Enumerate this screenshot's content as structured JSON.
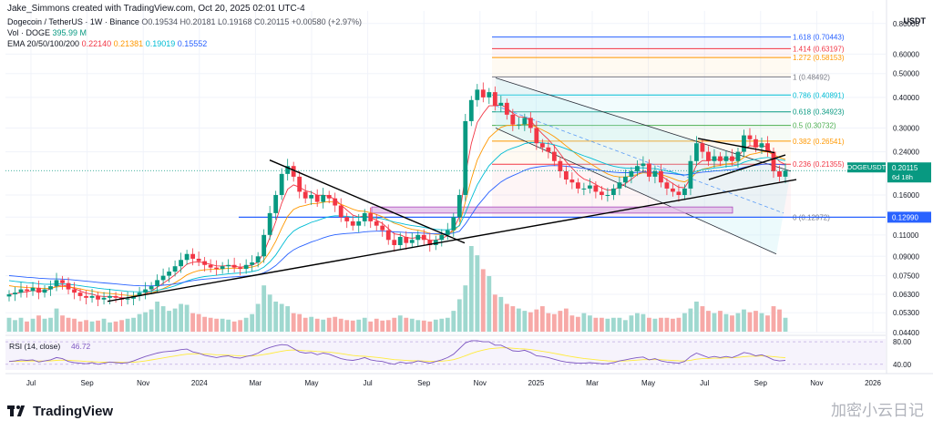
{
  "header": {
    "author_line": "Jake_Simmons created with TradingView.com, Oct 20, 2025 02:01 UTC-4"
  },
  "legend": {
    "symbol": "Dogecoin / TetherUS · 1W · Binance",
    "ohlc": "O0.19534 H0.20181 L0.19168 C0.20115 +0.00580 (+2.97%)",
    "vol_label": "Vol · DOGE",
    "vol_value": "395.99 M",
    "ema_label": "EMA 20/50/100/200",
    "ema_values": [
      "0.22140",
      "0.21381",
      "0.19019",
      "0.15552"
    ]
  },
  "axis": {
    "currency": "USDT"
  },
  "footer": {
    "brand": "TradingView",
    "watermark": "加密小云日记"
  },
  "chart_data": {
    "type": "candlestick",
    "symbol": "DOGEUSDT",
    "scale": "log",
    "ylim": [
      0.044,
      0.9
    ],
    "price_ticks": [
      0.8,
      0.6,
      0.5,
      0.4,
      0.3,
      0.24,
      0.16,
      0.13,
      0.11,
      0.09,
      0.075,
      0.063,
      0.053,
      0.044
    ],
    "price_tick_labels": [
      "0.80000",
      "0.60000",
      "0.50000",
      "0.40000",
      "0.30000",
      "0.24000",
      "0.16000",
      "0.13000",
      "0.11000",
      "0.09000",
      "0.07500",
      "0.06300",
      "0.05300",
      "0.04400"
    ],
    "time_labels": [
      "Jul",
      "Sep",
      "Nov",
      "2024",
      "Mar",
      "May",
      "Jul",
      "Sep",
      "Nov",
      "2025",
      "Mar",
      "May",
      "Jul",
      "Sep",
      "Nov",
      "2026"
    ],
    "time_ticks_month_index": [
      0,
      2,
      4,
      6,
      8,
      10,
      12,
      14,
      16,
      18,
      20,
      22,
      24,
      26,
      28,
      30
    ],
    "current_price": {
      "value": 0.20115,
      "label": "DOGEUSDT",
      "price_label": "0.20115",
      "countdown": "6d 18h",
      "color": "#089981"
    },
    "horizontal_level": {
      "value": 0.1299,
      "label": "0.12990",
      "color": "#2962ff"
    },
    "fib_levels": [
      {
        "ratio": "1.618",
        "value": 0.70443,
        "color": "#2962ff"
      },
      {
        "ratio": "1.414",
        "value": 0.63197,
        "color": "#f23645"
      },
      {
        "ratio": "1.272",
        "value": 0.58153,
        "color": "#ff9800"
      },
      {
        "ratio": "1",
        "value": 0.48492,
        "color": "#787b86"
      },
      {
        "ratio": "0.786",
        "value": 0.40891,
        "color": "#00bcd4"
      },
      {
        "ratio": "0.618",
        "value": 0.34923,
        "color": "#089981"
      },
      {
        "ratio": "0.5",
        "value": 0.30732,
        "color": "#4caf50"
      },
      {
        "ratio": "0.382",
        "value": 0.26541,
        "color": "#ff9800"
      },
      {
        "ratio": "0.236",
        "value": 0.21355,
        "color": "#f23645"
      },
      {
        "ratio": "0",
        "value": 0.12972,
        "color": "#787b86"
      }
    ],
    "price_path_weekly": [
      0.063,
      0.064,
      0.066,
      0.065,
      0.067,
      0.064,
      0.066,
      0.068,
      0.072,
      0.07,
      0.066,
      0.064,
      0.062,
      0.061,
      0.062,
      0.06,
      0.061,
      0.062,
      0.061,
      0.06,
      0.0605,
      0.062,
      0.064,
      0.066,
      0.068,
      0.072,
      0.075,
      0.078,
      0.082,
      0.087,
      0.092,
      0.088,
      0.086,
      0.083,
      0.081,
      0.08,
      0.082,
      0.083,
      0.081,
      0.08,
      0.083,
      0.085,
      0.09,
      0.11,
      0.135,
      0.16,
      0.195,
      0.21,
      0.19,
      0.165,
      0.155,
      0.16,
      0.15,
      0.16,
      0.155,
      0.145,
      0.13,
      0.125,
      0.12,
      0.125,
      0.135,
      0.125,
      0.12,
      0.115,
      0.105,
      0.1,
      0.108,
      0.102,
      0.105,
      0.11,
      0.105,
      0.1,
      0.105,
      0.11,
      0.115,
      0.13,
      0.16,
      0.32,
      0.39,
      0.43,
      0.4,
      0.42,
      0.37,
      0.38,
      0.34,
      0.31,
      0.31,
      0.33,
      0.3,
      0.26,
      0.25,
      0.24,
      0.22,
      0.2,
      0.185,
      0.18,
      0.17,
      0.17,
      0.175,
      0.165,
      0.16,
      0.16,
      0.17,
      0.18,
      0.19,
      0.2,
      0.21,
      0.215,
      0.19,
      0.2,
      0.18,
      0.17,
      0.165,
      0.16,
      0.17,
      0.22,
      0.26,
      0.24,
      0.22,
      0.23,
      0.22,
      0.23,
      0.22,
      0.24,
      0.28,
      0.27,
      0.25,
      0.26,
      0.24,
      0.2,
      0.19,
      0.2012
    ],
    "ema": [
      {
        "label": "EMA 20",
        "value": 0.2214,
        "color": "#f23645"
      },
      {
        "label": "EMA 50",
        "value": 0.21381,
        "color": "#ff9800"
      },
      {
        "label": "EMA 100",
        "value": 0.19019,
        "color": "#00bcd4"
      },
      {
        "label": "EMA 200",
        "value": 0.15552,
        "color": "#2962ff"
      }
    ],
    "volume_weekly": [
      0.3,
      0.25,
      0.3,
      0.22,
      0.28,
      0.35,
      0.28,
      0.3,
      0.5,
      0.35,
      0.3,
      0.28,
      0.22,
      0.25,
      0.22,
      0.24,
      0.28,
      0.2,
      0.22,
      0.25,
      0.28,
      0.3,
      0.38,
      0.42,
      0.48,
      0.65,
      0.55,
      0.45,
      0.5,
      0.6,
      0.58,
      0.4,
      0.38,
      0.32,
      0.3,
      0.28,
      0.28,
      0.26,
      0.22,
      0.25,
      0.3,
      0.38,
      0.6,
      1.0,
      0.8,
      0.65,
      0.6,
      0.55,
      0.4,
      0.38,
      0.3,
      0.32,
      0.28,
      0.26,
      0.3,
      0.32,
      0.28,
      0.25,
      0.24,
      0.26,
      0.3,
      0.22,
      0.28,
      0.24,
      0.25,
      0.3,
      0.35,
      0.3,
      0.28,
      0.25,
      0.24,
      0.22,
      0.26,
      0.28,
      0.3,
      0.45,
      0.7,
      1.0,
      1.85,
      1.65,
      1.35,
      1.2,
      0.8,
      0.75,
      0.6,
      0.55,
      0.5,
      0.45,
      0.42,
      0.48,
      0.55,
      0.4,
      0.38,
      0.45,
      0.5,
      0.35,
      0.32,
      0.4,
      0.35,
      0.3,
      0.3,
      0.28,
      0.3,
      0.3,
      0.25,
      0.35,
      0.4,
      0.38,
      0.3,
      0.28,
      0.3,
      0.3,
      0.28,
      0.3,
      0.4,
      0.5,
      0.65,
      0.55,
      0.45,
      0.4,
      0.45,
      0.38,
      0.35,
      0.4,
      0.48,
      0.42,
      0.45,
      0.4,
      0.35,
      0.55,
      0.48,
      0.3
    ],
    "rsi": {
      "label": "RSI (14, close)",
      "value": 46.72,
      "ylim": [
        30,
        85
      ],
      "ticks": [
        80,
        40
      ],
      "tick_labels": [
        "80.00",
        "40.00"
      ],
      "color": "#7e57c2",
      "ma_color": "#ffeb3b",
      "values": [
        45,
        46,
        48,
        47,
        48,
        44,
        46,
        48,
        52,
        50,
        45,
        43,
        42,
        41,
        43,
        40,
        42,
        44,
        43,
        42,
        43,
        46,
        50,
        54,
        57,
        60,
        62,
        63,
        64,
        66,
        67,
        62,
        60,
        56,
        54,
        52,
        54,
        55,
        52,
        51,
        54,
        56,
        60,
        66,
        70,
        73,
        75,
        74,
        68,
        62,
        60,
        61,
        57,
        60,
        58,
        54,
        50,
        48,
        47,
        49,
        52,
        48,
        46,
        45,
        42,
        40,
        44,
        42,
        43,
        46,
        44,
        42,
        45,
        48,
        52,
        58,
        68,
        78,
        82,
        82,
        80,
        80,
        74,
        74,
        69,
        64,
        63,
        65,
        61,
        55,
        54,
        52,
        49,
        46,
        44,
        43,
        42,
        42,
        43,
        42,
        41,
        41,
        43,
        46,
        48,
        50,
        52,
        53,
        48,
        50,
        46,
        44,
        43,
        42,
        45,
        54,
        60,
        56,
        52,
        54,
        52,
        54,
        52,
        56,
        61,
        59,
        55,
        57,
        53,
        48,
        46,
        47
      ]
    }
  }
}
